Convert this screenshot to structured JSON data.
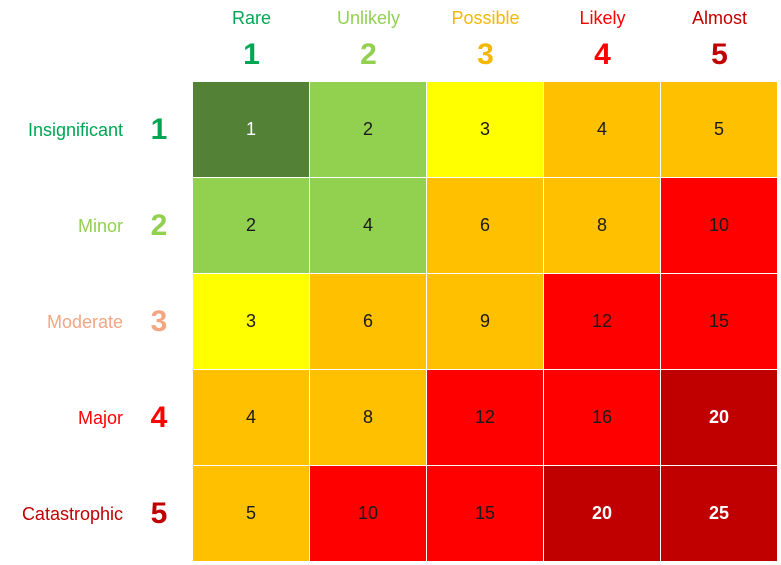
{
  "likelihood": [
    {
      "label": "Rare",
      "number": "1",
      "color": "#00a651"
    },
    {
      "label": "Unlikely",
      "number": "2",
      "color": "#92d050"
    },
    {
      "label": "Possible",
      "number": "3",
      "color": "#f5b800"
    },
    {
      "label": "Likely",
      "number": "4",
      "color": "#ff0000"
    },
    {
      "label": "Almost",
      "number": "5",
      "color": "#c00000"
    }
  ],
  "impact": [
    {
      "label": "Insignificant",
      "number": "1",
      "color": "#00a651"
    },
    {
      "label": "Minor",
      "number": "2",
      "color": "#92d050"
    },
    {
      "label": "Moderate",
      "number": "3",
      "color": "#f4a582"
    },
    {
      "label": "Major",
      "number": "4",
      "color": "#ff0000"
    },
    {
      "label": "Catastrophic",
      "number": "5",
      "color": "#c00000"
    }
  ],
  "matrix": [
    [
      {
        "value": "1",
        "color": "#538135"
      },
      {
        "value": "2",
        "color": "#92d050"
      },
      {
        "value": "3",
        "color": "#ffff00"
      },
      {
        "value": "4",
        "color": "#ffc000"
      },
      {
        "value": "5",
        "color": "#ffc000"
      }
    ],
    [
      {
        "value": "2",
        "color": "#92d050"
      },
      {
        "value": "4",
        "color": "#92d050"
      },
      {
        "value": "6",
        "color": "#ffc000"
      },
      {
        "value": "8",
        "color": "#ffc000"
      },
      {
        "value": "10",
        "color": "#ff0000"
      }
    ],
    [
      {
        "value": "3",
        "color": "#ffff00"
      },
      {
        "value": "6",
        "color": "#ffc000"
      },
      {
        "value": "9",
        "color": "#ffc000"
      },
      {
        "value": "12",
        "color": "#ff0000"
      },
      {
        "value": "15",
        "color": "#ff0000"
      }
    ],
    [
      {
        "value": "4",
        "color": "#ffc000"
      },
      {
        "value": "8",
        "color": "#ffc000"
      },
      {
        "value": "12",
        "color": "#ff0000"
      },
      {
        "value": "16",
        "color": "#ff0000"
      },
      {
        "value": "20",
        "color": "#c00000"
      }
    ],
    [
      {
        "value": "5",
        "color": "#ffc000"
      },
      {
        "value": "10",
        "color": "#ff0000"
      },
      {
        "value": "15",
        "color": "#ff0000"
      },
      {
        "value": "20",
        "color": "#c00000"
      },
      {
        "value": "25",
        "color": "#c00000"
      }
    ]
  ]
}
